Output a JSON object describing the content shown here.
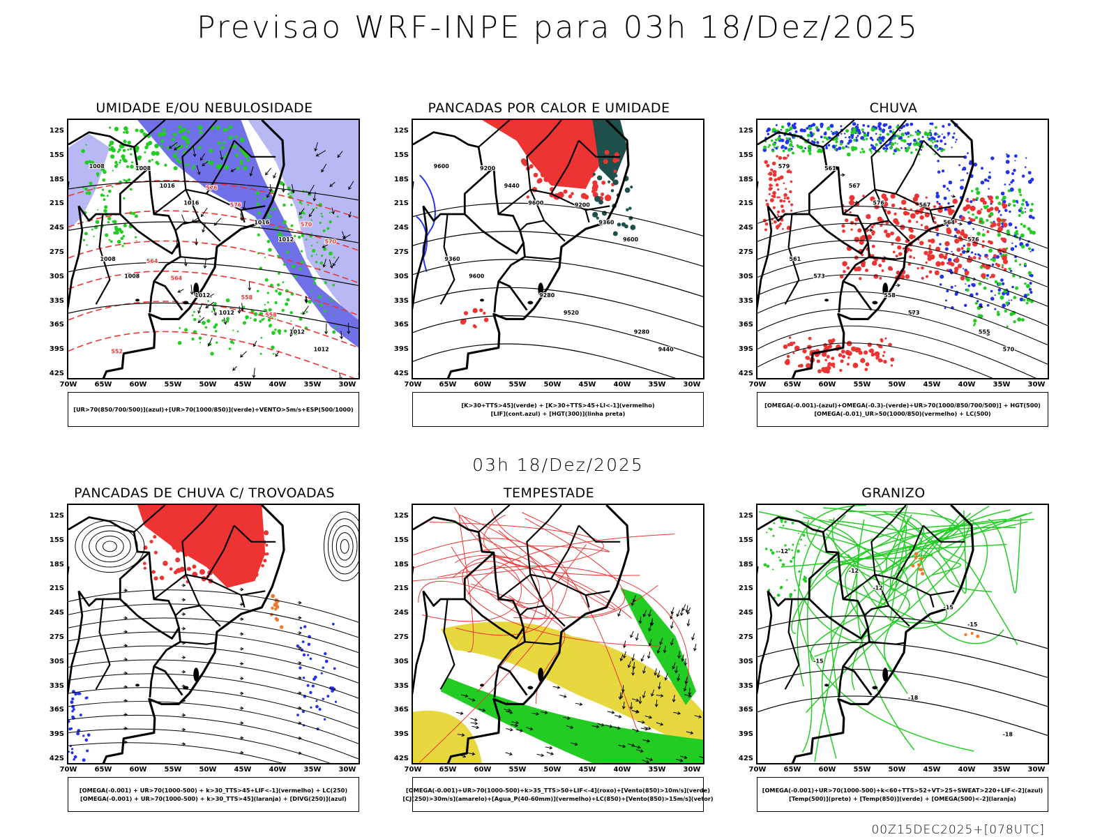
{
  "title": "Previsao WRF-INPE  para 03h 18/Dez/2025",
  "subtitle": "03h 18/Dez/2025",
  "footer": "00Z15DEC2025+[078UTC]",
  "axes": {
    "lat_ticks": [
      "12S",
      "15S",
      "18S",
      "21S",
      "24S",
      "27S",
      "30S",
      "33S",
      "36S",
      "39S",
      "42S"
    ],
    "lon_ticks": [
      "70W",
      "65W",
      "60W",
      "55W",
      "50W",
      "45W",
      "40W",
      "35W",
      "30W"
    ]
  },
  "colors": {
    "blue": "#2233ee",
    "lavender": "#b8b8f4",
    "periwinkle": "#7070e8",
    "green": "#22cc22",
    "red": "#ee3333",
    "orange": "#f07828",
    "yellow": "#e8d840",
    "darkteal": "#1f4f4a",
    "lightblue": "#8ab0f8"
  },
  "panels": [
    {
      "title": "UMIDADE E/OU NEBULOSIDADE",
      "legend": [
        "[UR>70(850/700/500)](azul)+[UR>70(1000/850)](verde)+VENTO>5m/s+ESP(500/1000)"
      ],
      "labels": [
        "1008",
        "1016",
        "1012",
        "1008",
        "1012",
        "1012",
        "1016",
        "1016",
        "1008",
        "1012",
        "1012",
        "1008",
        "576",
        "570",
        "564",
        "558",
        "552",
        "576",
        "570",
        "564",
        "558"
      ]
    },
    {
      "title": "PANCADAS POR CALOR E UMIDADE",
      "legend": [
        "[K>30+TTS>45](verde) + [K>30+TTS>45+LI<-1](vermelho)",
        "[LIF](cont.azul) + [HGT(300)](linha preta)"
      ],
      "labels": [
        "9600",
        "9600",
        "9600",
        "9600",
        "9520",
        "9440",
        "9440",
        "9360",
        "9360",
        "9280",
        "9280",
        "9200",
        "9200"
      ]
    },
    {
      "title": "CHUVA",
      "legend": [
        "[OMEGA(-0.001)-(azul)+OMEGA(-0.3)-(verde)+UR>70(1000/850/700/500)] + HGT(500)",
        "[OMEGA(-0.01)_UR>50(1000/850)(vermelho) + LC(500)"
      ],
      "labels": [
        "579",
        "576",
        "576",
        "573",
        "573",
        "570",
        "567",
        "564",
        "561",
        "558",
        "555",
        "561",
        "567"
      ]
    },
    {
      "title": "PANCADAS DE CHUVA C/ TROVOADAS",
      "legend": [
        "[OMEGA(-0.001) + UR>70(1000-500) + k>30_TTS>45+LIF<-1](vermelho) + LC(250)",
        "[OMEGA(-0.001) + UR>70(1000-500) + k>30_TTS>45](laranja) + [DIVG(250)](azul)"
      ],
      "labels": []
    },
    {
      "title": "TEMPESTADE",
      "legend": [
        "[OMEGA(-0.001)+UR>70(1000-500)+k>35_TTS>50+LIF<-4](roxo)+[Vento(850)>10m/s](verde)",
        "[CJ(250)>30m/s](amarelo)+[Agua_P(40-60mm)](vermelho)+LC(850)+[Vento(850)>15m/s](vetor)"
      ],
      "labels": []
    },
    {
      "title": "GRANIZO",
      "legend": [
        "[OMEGA(-0.001)+UR>70(1000-500)+k<60+TTS>52+VT>25+SWEAT>220+LIF<-2](azul)",
        "[Temp(500)](preto) + [Temp(850)](verde) + [OMEGA(500)<-2](laranja)"
      ],
      "labels": [
        "-12",
        "-12",
        "-15",
        "-15",
        "-18",
        "-18",
        "-12",
        "-15"
      ]
    }
  ]
}
